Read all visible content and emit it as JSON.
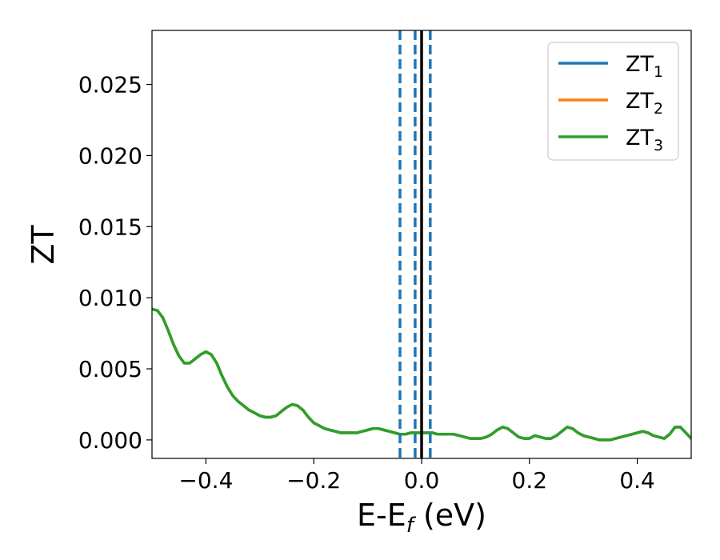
{
  "chart_data": {
    "type": "line",
    "xlabel": {
      "main": "E-E",
      "sub": "f",
      "suffix": " (eV)"
    },
    "ylabel": "ZT",
    "xlim": [
      -0.5,
      0.5
    ],
    "ylim": [
      -0.0013,
      0.0288
    ],
    "x_ticks": [
      {
        "value": -0.4,
        "label": "−0.4"
      },
      {
        "value": -0.2,
        "label": "−0.2"
      },
      {
        "value": 0.0,
        "label": "0.0"
      },
      {
        "value": 0.2,
        "label": "0.2"
      },
      {
        "value": 0.4,
        "label": "0.4"
      }
    ],
    "y_ticks": [
      {
        "value": 0.0,
        "label": "0.000"
      },
      {
        "value": 0.005,
        "label": "0.005"
      },
      {
        "value": 0.01,
        "label": "0.010"
      },
      {
        "value": 0.015,
        "label": "0.015"
      },
      {
        "value": 0.02,
        "label": "0.020"
      },
      {
        "value": 0.025,
        "label": "0.025"
      }
    ],
    "legend_position": "top-right",
    "grid": false,
    "series": [
      {
        "name": "ZT1",
        "label_main": "ZT",
        "label_sub": "1",
        "color": "#1f77b4",
        "x": [
          -0.5,
          -0.49,
          -0.48,
          -0.47,
          -0.46,
          -0.45,
          -0.44,
          -0.43,
          -0.42,
          -0.41,
          -0.4,
          -0.39,
          -0.38,
          -0.37,
          -0.36,
          -0.35,
          -0.34,
          -0.33,
          -0.32,
          -0.31,
          -0.3,
          -0.29,
          -0.28,
          -0.27,
          -0.26,
          -0.25,
          -0.24,
          -0.23,
          -0.22,
          -0.21,
          -0.2,
          -0.19,
          -0.18,
          -0.17,
          -0.16,
          -0.15,
          -0.14,
          -0.13,
          -0.12,
          -0.11,
          -0.1,
          -0.09,
          -0.08,
          -0.07,
          -0.06,
          -0.05,
          -0.04,
          -0.03,
          -0.02,
          -0.01,
          0.0,
          0.01,
          0.02,
          0.03,
          0.04,
          0.05,
          0.06,
          0.07,
          0.08,
          0.09,
          0.1,
          0.11,
          0.12,
          0.13,
          0.14,
          0.15,
          0.16,
          0.17,
          0.18,
          0.19,
          0.2,
          0.21,
          0.22,
          0.23,
          0.24,
          0.25,
          0.26,
          0.27,
          0.28,
          0.29,
          0.3,
          0.31,
          0.32,
          0.33,
          0.34,
          0.35,
          0.36,
          0.37,
          0.38,
          0.39,
          0.4,
          0.41,
          0.42,
          0.43,
          0.44,
          0.45,
          0.46,
          0.47,
          0.48,
          0.49,
          0.5
        ],
        "y": [
          0.0092,
          0.0091,
          0.0086,
          0.0077,
          0.0067,
          0.0059,
          0.0054,
          0.0054,
          0.0057,
          0.006,
          0.0062,
          0.006,
          0.0054,
          0.0045,
          0.0037,
          0.0031,
          0.0027,
          0.0024,
          0.0021,
          0.0019,
          0.0017,
          0.0016,
          0.0016,
          0.0017,
          0.002,
          0.0023,
          0.0025,
          0.0024,
          0.0021,
          0.0016,
          0.0012,
          0.001,
          0.0008,
          0.0007,
          0.0006,
          0.0005,
          0.0005,
          0.0005,
          0.0005,
          0.0006,
          0.0007,
          0.0008,
          0.0008,
          0.0007,
          0.0006,
          0.0005,
          0.0004,
          0.0004,
          0.0005,
          0.0005,
          0.0005,
          0.0005,
          0.0005,
          0.0004,
          0.0004,
          0.0004,
          0.0004,
          0.0003,
          0.0002,
          0.0001,
          0.0001,
          0.0001,
          0.0002,
          0.0004,
          0.0007,
          0.0009,
          0.0008,
          0.0005,
          0.0002,
          0.0001,
          0.0001,
          0.0003,
          0.0002,
          0.0001,
          0.0001,
          0.0003,
          0.0006,
          0.0009,
          0.0008,
          0.0005,
          0.0003,
          0.0002,
          0.0001,
          0.0,
          0.0,
          0.0,
          0.0001,
          0.0002,
          0.0003,
          0.0004,
          0.0005,
          0.0006,
          0.0005,
          0.0003,
          0.0002,
          0.0001,
          0.0004,
          0.0009,
          0.0009,
          0.0005,
          0.0001
        ]
      },
      {
        "name": "ZT2",
        "label_main": "ZT",
        "label_sub": "2",
        "color": "#ff7f0e",
        "x": [
          -0.5,
          -0.49,
          -0.48,
          -0.47,
          -0.46,
          -0.45,
          -0.44,
          -0.43,
          -0.42,
          -0.41,
          -0.4,
          -0.39,
          -0.38,
          -0.37,
          -0.36,
          -0.35,
          -0.34,
          -0.33,
          -0.32,
          -0.31,
          -0.3,
          -0.29,
          -0.28,
          -0.27,
          -0.26,
          -0.25,
          -0.24,
          -0.23,
          -0.22,
          -0.21,
          -0.2,
          -0.19,
          -0.18,
          -0.17,
          -0.16,
          -0.15,
          -0.14,
          -0.13,
          -0.12,
          -0.11,
          -0.1,
          -0.09,
          -0.08,
          -0.07,
          -0.06,
          -0.05,
          -0.04,
          -0.03,
          -0.02,
          -0.01,
          0.0,
          0.01,
          0.02,
          0.03,
          0.04,
          0.05,
          0.06,
          0.07,
          0.08,
          0.09,
          0.1,
          0.11,
          0.12,
          0.13,
          0.14,
          0.15,
          0.16,
          0.17,
          0.18,
          0.19,
          0.2,
          0.21,
          0.22,
          0.23,
          0.24,
          0.25,
          0.26,
          0.27,
          0.28,
          0.29,
          0.3,
          0.31,
          0.32,
          0.33,
          0.34,
          0.35,
          0.36,
          0.37,
          0.38,
          0.39,
          0.4,
          0.41,
          0.42,
          0.43,
          0.44,
          0.45,
          0.46,
          0.47,
          0.48,
          0.49,
          0.5
        ],
        "y": [
          0.0092,
          0.0091,
          0.0086,
          0.0077,
          0.0067,
          0.0059,
          0.0054,
          0.0054,
          0.0057,
          0.006,
          0.0062,
          0.006,
          0.0054,
          0.0045,
          0.0037,
          0.0031,
          0.0027,
          0.0024,
          0.0021,
          0.0019,
          0.0017,
          0.0016,
          0.0016,
          0.0017,
          0.002,
          0.0023,
          0.0025,
          0.0024,
          0.0021,
          0.0016,
          0.0012,
          0.001,
          0.0008,
          0.0007,
          0.0006,
          0.0005,
          0.0005,
          0.0005,
          0.0005,
          0.0006,
          0.0007,
          0.0008,
          0.0008,
          0.0007,
          0.0006,
          0.0005,
          0.0004,
          0.0004,
          0.0005,
          0.0005,
          0.0005,
          0.0005,
          0.0005,
          0.0004,
          0.0004,
          0.0004,
          0.0004,
          0.0003,
          0.0002,
          0.0001,
          0.0001,
          0.0001,
          0.0002,
          0.0004,
          0.0007,
          0.0009,
          0.0008,
          0.0005,
          0.0002,
          0.0001,
          0.0001,
          0.0003,
          0.0002,
          0.0001,
          0.0001,
          0.0003,
          0.0006,
          0.0009,
          0.0008,
          0.0005,
          0.0003,
          0.0002,
          0.0001,
          0.0,
          0.0,
          0.0,
          0.0001,
          0.0002,
          0.0003,
          0.0004,
          0.0005,
          0.0006,
          0.0005,
          0.0003,
          0.0002,
          0.0001,
          0.0004,
          0.0009,
          0.0009,
          0.0005,
          0.0001
        ]
      },
      {
        "name": "ZT3",
        "label_main": "ZT",
        "label_sub": "3",
        "color": "#2ca02c",
        "x": [
          -0.5,
          -0.49,
          -0.48,
          -0.47,
          -0.46,
          -0.45,
          -0.44,
          -0.43,
          -0.42,
          -0.41,
          -0.4,
          -0.39,
          -0.38,
          -0.37,
          -0.36,
          -0.35,
          -0.34,
          -0.33,
          -0.32,
          -0.31,
          -0.3,
          -0.29,
          -0.28,
          -0.27,
          -0.26,
          -0.25,
          -0.24,
          -0.23,
          -0.22,
          -0.21,
          -0.2,
          -0.19,
          -0.18,
          -0.17,
          -0.16,
          -0.15,
          -0.14,
          -0.13,
          -0.12,
          -0.11,
          -0.1,
          -0.09,
          -0.08,
          -0.07,
          -0.06,
          -0.05,
          -0.04,
          -0.03,
          -0.02,
          -0.01,
          0.0,
          0.01,
          0.02,
          0.03,
          0.04,
          0.05,
          0.06,
          0.07,
          0.08,
          0.09,
          0.1,
          0.11,
          0.12,
          0.13,
          0.14,
          0.15,
          0.16,
          0.17,
          0.18,
          0.19,
          0.2,
          0.21,
          0.22,
          0.23,
          0.24,
          0.25,
          0.26,
          0.27,
          0.28,
          0.29,
          0.3,
          0.31,
          0.32,
          0.33,
          0.34,
          0.35,
          0.36,
          0.37,
          0.38,
          0.39,
          0.4,
          0.41,
          0.42,
          0.43,
          0.44,
          0.45,
          0.46,
          0.47,
          0.48,
          0.49,
          0.5
        ],
        "y": [
          0.0092,
          0.0091,
          0.0086,
          0.0077,
          0.0067,
          0.0059,
          0.0054,
          0.0054,
          0.0057,
          0.006,
          0.0062,
          0.006,
          0.0054,
          0.0045,
          0.0037,
          0.0031,
          0.0027,
          0.0024,
          0.0021,
          0.0019,
          0.0017,
          0.0016,
          0.0016,
          0.0017,
          0.002,
          0.0023,
          0.0025,
          0.0024,
          0.0021,
          0.0016,
          0.0012,
          0.001,
          0.0008,
          0.0007,
          0.0006,
          0.0005,
          0.0005,
          0.0005,
          0.0005,
          0.0006,
          0.0007,
          0.0008,
          0.0008,
          0.0007,
          0.0006,
          0.0005,
          0.0004,
          0.0004,
          0.0005,
          0.0005,
          0.0005,
          0.0005,
          0.0005,
          0.0004,
          0.0004,
          0.0004,
          0.0004,
          0.0003,
          0.0002,
          0.0001,
          0.0001,
          0.0001,
          0.0002,
          0.0004,
          0.0007,
          0.0009,
          0.0008,
          0.0005,
          0.0002,
          0.0001,
          0.0001,
          0.0003,
          0.0002,
          0.0001,
          0.0001,
          0.0003,
          0.0006,
          0.0009,
          0.0008,
          0.0005,
          0.0003,
          0.0002,
          0.0001,
          0.0,
          0.0,
          0.0,
          0.0001,
          0.0002,
          0.0003,
          0.0004,
          0.0005,
          0.0006,
          0.0005,
          0.0003,
          0.0002,
          0.0001,
          0.0004,
          0.0009,
          0.0009,
          0.0005,
          0.0001
        ]
      }
    ],
    "vertical_lines": [
      {
        "x": -0.04,
        "style": "dashed",
        "color": "#1f77b4"
      },
      {
        "x": -0.012,
        "style": "dashed",
        "color": "#1f77b4"
      },
      {
        "x": 0.016,
        "style": "dashed",
        "color": "#1f77b4"
      },
      {
        "x": 0.0,
        "style": "solid",
        "color": "#000000"
      }
    ]
  }
}
